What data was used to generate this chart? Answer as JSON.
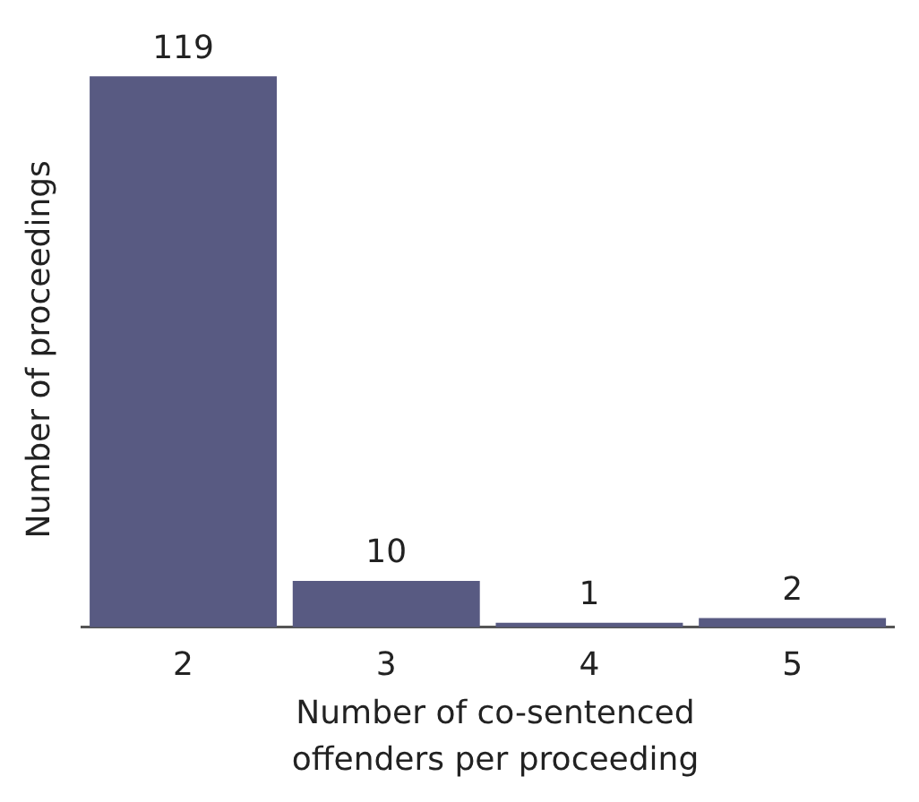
{
  "chart_data": {
    "type": "bar",
    "xlabel": "Number of co-sentenced offenders per proceeding",
    "ylabel": "Number of proceedings",
    "categories": [
      "2",
      "3",
      "4",
      "5"
    ],
    "values": [
      119,
      10,
      1,
      2
    ],
    "color": "#585a82",
    "data_labels": true,
    "grid": false,
    "legend": false
  }
}
